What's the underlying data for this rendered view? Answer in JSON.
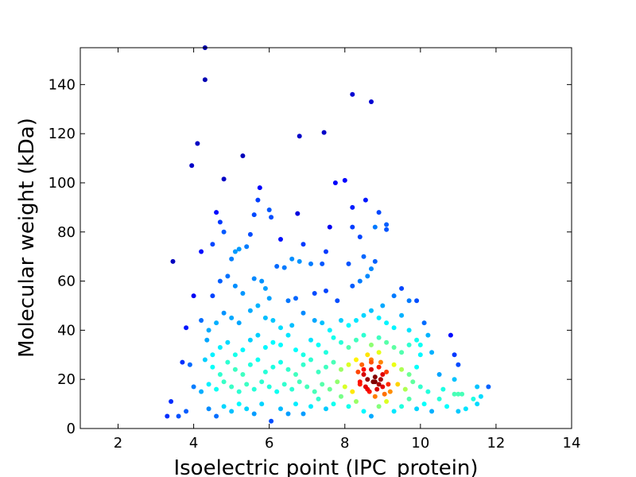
{
  "chart_data": {
    "type": "scatter",
    "title": "",
    "xlabel": "Isoelectric point (IPC_protein)",
    "ylabel": "Molecular weight (kDa)",
    "xlim": [
      1,
      14
    ],
    "ylim": [
      0,
      155
    ],
    "xticks": [
      2,
      4,
      6,
      8,
      10,
      12,
      14
    ],
    "yticks": [
      0,
      20,
      40,
      60,
      80,
      100,
      120,
      140
    ],
    "grid": false,
    "legend": "none",
    "colormap": "jet (color encodes local point density)",
    "colors": {
      "low_density": "#00008f",
      "mid_low": "#0060ff",
      "mid": "#20e0e0",
      "mid_high": "#ffe000",
      "high_density": "#7f0000"
    },
    "points": [
      [
        4.3,
        155
      ],
      [
        4.3,
        142
      ],
      [
        4.1,
        116
      ],
      [
        3.95,
        107
      ],
      [
        4.8,
        101.5
      ],
      [
        5.3,
        111
      ],
      [
        8.2,
        136
      ],
      [
        8.7,
        133
      ],
      [
        6.8,
        119
      ],
      [
        7.45,
        120.5
      ],
      [
        5.75,
        98
      ],
      [
        5.7,
        93
      ],
      [
        6.0,
        89
      ],
      [
        6.05,
        86
      ],
      [
        6.75,
        87.5
      ],
      [
        8.0,
        101
      ],
      [
        7.75,
        100
      ],
      [
        8.55,
        93
      ],
      [
        8.2,
        90
      ],
      [
        8.9,
        88
      ],
      [
        8.8,
        82
      ],
      [
        9.1,
        83
      ],
      [
        9.1,
        81
      ],
      [
        8.2,
        82
      ],
      [
        8.4,
        78
      ],
      [
        4.6,
        88
      ],
      [
        4.7,
        84
      ],
      [
        4.8,
        80
      ],
      [
        5.5,
        79
      ],
      [
        5.6,
        87
      ],
      [
        6.3,
        77
      ],
      [
        6.9,
        75
      ],
      [
        7.6,
        82
      ],
      [
        7.5,
        72
      ],
      [
        3.45,
        68
      ],
      [
        4.2,
        72
      ],
      [
        4.5,
        75
      ],
      [
        5.1,
        72
      ],
      [
        5.2,
        73
      ],
      [
        5.0,
        69
      ],
      [
        5.4,
        74
      ],
      [
        6.2,
        66
      ],
      [
        6.4,
        65.5
      ],
      [
        6.6,
        69
      ],
      [
        6.8,
        68
      ],
      [
        7.1,
        67
      ],
      [
        7.4,
        67
      ],
      [
        8.1,
        67
      ],
      [
        8.5,
        70
      ],
      [
        8.8,
        68
      ],
      [
        8.7,
        65
      ],
      [
        8.6,
        62
      ],
      [
        8.4,
        60
      ],
      [
        8.2,
        58
      ],
      [
        4.0,
        54
      ],
      [
        4.5,
        54
      ],
      [
        4.7,
        60
      ],
      [
        4.9,
        62
      ],
      [
        5.1,
        58
      ],
      [
        5.3,
        55
      ],
      [
        5.6,
        61
      ],
      [
        5.8,
        60
      ],
      [
        5.9,
        57
      ],
      [
        6.0,
        53
      ],
      [
        6.5,
        52
      ],
      [
        6.7,
        53
      ],
      [
        7.2,
        55
      ],
      [
        7.5,
        56
      ],
      [
        7.8,
        52
      ],
      [
        9.3,
        54
      ],
      [
        9.5,
        57
      ],
      [
        9.7,
        52
      ],
      [
        9.9,
        52
      ],
      [
        9.0,
        50
      ],
      [
        3.8,
        41
      ],
      [
        4.2,
        44
      ],
      [
        4.4,
        40
      ],
      [
        4.6,
        43
      ],
      [
        4.8,
        47
      ],
      [
        5.0,
        45
      ],
      [
        5.2,
        43
      ],
      [
        5.5,
        48
      ],
      [
        5.7,
        50
      ],
      [
        5.9,
        45
      ],
      [
        6.1,
        44
      ],
      [
        6.3,
        41
      ],
      [
        6.6,
        42
      ],
      [
        6.9,
        47
      ],
      [
        7.2,
        44
      ],
      [
        7.4,
        43
      ],
      [
        7.6,
        40
      ],
      [
        7.9,
        44
      ],
      [
        8.1,
        42
      ],
      [
        8.3,
        44
      ],
      [
        8.5,
        46
      ],
      [
        8.7,
        48
      ],
      [
        8.9,
        45
      ],
      [
        9.1,
        43
      ],
      [
        9.3,
        41
      ],
      [
        9.5,
        46
      ],
      [
        9.7,
        40
      ],
      [
        10.1,
        43
      ],
      [
        10.2,
        38
      ],
      [
        10.8,
        38
      ],
      [
        9.9,
        36
      ],
      [
        10.0,
        34
      ],
      [
        4.35,
        36
      ],
      [
        4.5,
        30
      ],
      [
        4.7,
        33
      ],
      [
        4.9,
        35
      ],
      [
        5.1,
        30
      ],
      [
        5.3,
        32
      ],
      [
        5.5,
        36
      ],
      [
        5.7,
        38
      ],
      [
        5.9,
        33
      ],
      [
        6.1,
        35
      ],
      [
        6.3,
        34
      ],
      [
        6.5,
        38
      ],
      [
        6.7,
        32
      ],
      [
        6.9,
        30
      ],
      [
        7.1,
        36
      ],
      [
        7.3,
        34
      ],
      [
        7.5,
        31
      ],
      [
        7.7,
        37
      ],
      [
        7.9,
        35
      ],
      [
        8.1,
        33
      ],
      [
        8.3,
        36
      ],
      [
        8.5,
        38
      ],
      [
        8.7,
        34
      ],
      [
        8.9,
        37
      ],
      [
        9.1,
        35
      ],
      [
        9.3,
        33
      ],
      [
        9.5,
        31
      ],
      [
        9.7,
        34
      ],
      [
        10.0,
        30
      ],
      [
        10.3,
        31
      ],
      [
        10.9,
        30
      ],
      [
        11.0,
        26
      ],
      [
        3.7,
        27
      ],
      [
        3.9,
        26
      ],
      [
        4.3,
        28
      ],
      [
        4.5,
        25
      ],
      [
        4.7,
        22
      ],
      [
        4.9,
        27
      ],
      [
        5.1,
        24
      ],
      [
        5.3,
        22
      ],
      [
        5.5,
        26
      ],
      [
        5.7,
        28
      ],
      [
        5.9,
        23
      ],
      [
        6.1,
        25
      ],
      [
        6.3,
        27
      ],
      [
        6.5,
        24
      ],
      [
        6.7,
        22
      ],
      [
        6.9,
        26
      ],
      [
        7.1,
        28
      ],
      [
        7.3,
        23
      ],
      [
        7.5,
        25
      ],
      [
        7.7,
        27
      ],
      [
        7.9,
        24
      ],
      [
        8.1,
        26
      ],
      [
        8.3,
        28
      ],
      [
        8.5,
        24
      ],
      [
        8.7,
        27
      ],
      [
        8.9,
        25
      ],
      [
        9.1,
        23
      ],
      [
        9.3,
        26
      ],
      [
        9.5,
        24
      ],
      [
        9.7,
        22
      ],
      [
        9.9,
        25
      ],
      [
        10.5,
        22
      ],
      [
        10.9,
        20
      ],
      [
        4.0,
        17
      ],
      [
        4.2,
        15
      ],
      [
        4.4,
        18
      ],
      [
        4.6,
        16
      ],
      [
        4.8,
        19
      ],
      [
        5.0,
        17
      ],
      [
        5.2,
        15
      ],
      [
        5.4,
        18
      ],
      [
        5.6,
        16
      ],
      [
        5.8,
        19
      ],
      [
        6.0,
        17
      ],
      [
        6.2,
        15
      ],
      [
        6.4,
        18
      ],
      [
        6.6,
        16
      ],
      [
        6.8,
        19
      ],
      [
        7.0,
        17
      ],
      [
        7.2,
        15
      ],
      [
        7.4,
        18
      ],
      [
        7.6,
        16
      ],
      [
        7.8,
        19
      ],
      [
        8.0,
        17
      ],
      [
        8.2,
        15
      ],
      [
        8.4,
        18
      ],
      [
        8.6,
        16
      ],
      [
        8.8,
        19
      ],
      [
        9.0,
        17
      ],
      [
        9.2,
        15
      ],
      [
        9.4,
        18
      ],
      [
        9.6,
        16
      ],
      [
        9.8,
        19
      ],
      [
        10.0,
        17
      ],
      [
        10.2,
        15
      ],
      [
        10.6,
        16
      ],
      [
        11.0,
        14
      ],
      [
        11.5,
        17
      ],
      [
        11.8,
        17
      ],
      [
        3.4,
        11
      ],
      [
        3.3,
        5
      ],
      [
        3.6,
        5
      ],
      [
        3.8,
        7
      ],
      [
        4.4,
        8
      ],
      [
        4.6,
        5
      ],
      [
        4.8,
        9
      ],
      [
        5.0,
        7
      ],
      [
        5.2,
        10
      ],
      [
        5.4,
        8
      ],
      [
        5.6,
        6
      ],
      [
        5.8,
        10
      ],
      [
        6.05,
        3
      ],
      [
        6.3,
        8
      ],
      [
        6.5,
        6
      ],
      [
        6.7,
        10
      ],
      [
        6.9,
        6
      ],
      [
        7.1,
        9
      ],
      [
        7.3,
        12
      ],
      [
        7.5,
        8
      ],
      [
        7.7,
        10
      ],
      [
        7.9,
        13
      ],
      [
        8.1,
        9
      ],
      [
        8.3,
        11
      ],
      [
        8.5,
        7
      ],
      [
        8.7,
        5
      ],
      [
        8.9,
        9
      ],
      [
        9.1,
        11
      ],
      [
        9.3,
        7
      ],
      [
        9.5,
        9
      ],
      [
        9.7,
        12
      ],
      [
        9.9,
        8
      ],
      [
        10.1,
        10
      ],
      [
        10.3,
        7
      ],
      [
        10.5,
        12
      ],
      [
        10.7,
        9
      ],
      [
        10.9,
        14
      ],
      [
        11.0,
        7
      ],
      [
        11.1,
        14
      ],
      [
        11.2,
        8
      ],
      [
        11.4,
        12
      ],
      [
        11.5,
        10
      ],
      [
        11.6,
        13
      ],
      [
        8.5,
        22
      ],
      [
        8.6,
        20
      ],
      [
        8.7,
        24
      ],
      [
        8.8,
        21
      ],
      [
        8.9,
        18
      ],
      [
        9.0,
        22
      ],
      [
        8.4,
        19
      ],
      [
        8.55,
        17
      ],
      [
        8.65,
        15
      ],
      [
        8.75,
        19
      ],
      [
        8.85,
        16
      ],
      [
        8.95,
        20
      ],
      [
        9.05,
        14
      ],
      [
        8.45,
        26
      ],
      [
        8.7,
        28
      ],
      [
        8.95,
        27
      ],
      [
        8.35,
        23
      ],
      [
        8.8,
        13
      ],
      [
        9.15,
        18
      ],
      [
        8.6,
        30
      ],
      [
        8.9,
        31
      ]
    ]
  }
}
